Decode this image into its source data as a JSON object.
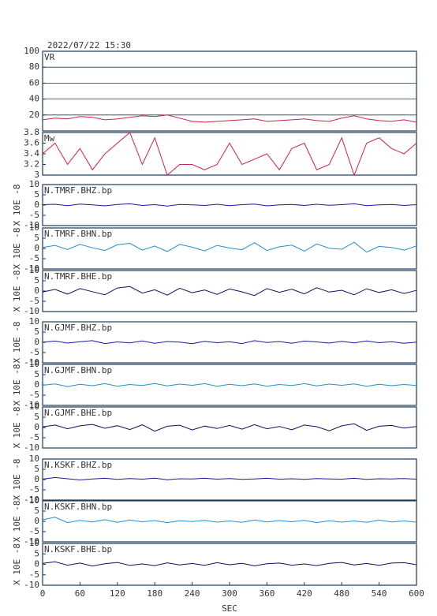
{
  "chart_data": [
    {
      "type": "line",
      "title": "2022/07/22 15:30",
      "label": "VR",
      "xlim": [
        0,
        600
      ],
      "ylim": [
        0,
        100
      ],
      "yticks": [
        20,
        40,
        60,
        80,
        100
      ],
      "grid": true,
      "x": [
        0,
        20,
        40,
        60,
        80,
        100,
        120,
        140,
        160,
        180,
        200,
        220,
        240,
        260,
        280,
        300,
        320,
        340,
        360,
        380,
        400,
        420,
        440,
        460,
        480,
        500,
        520,
        540,
        560,
        580,
        600
      ],
      "series": [
        {
          "name": "VR",
          "color": "#d0204a",
          "values": [
            14,
            16,
            15,
            18,
            17,
            14,
            15,
            17,
            19,
            18,
            20,
            16,
            12,
            11,
            12,
            13,
            14,
            15,
            12,
            13,
            14,
            15,
            13,
            12,
            16,
            19,
            15,
            13,
            12,
            14,
            11
          ]
        }
      ]
    },
    {
      "type": "line",
      "label": "Mw",
      "xlim": [
        0,
        600
      ],
      "ylim": [
        3.0,
        3.8
      ],
      "yticks": [
        3.0,
        3.2,
        3.4,
        3.6,
        3.8
      ],
      "x": [
        0,
        20,
        40,
        60,
        80,
        100,
        120,
        140,
        160,
        180,
        200,
        220,
        240,
        260,
        280,
        300,
        320,
        340,
        360,
        380,
        400,
        420,
        440,
        460,
        480,
        500,
        520,
        540,
        560,
        580,
        600
      ],
      "series": [
        {
          "name": "Mw",
          "color": "#d0204a",
          "values": [
            3.4,
            3.6,
            3.2,
            3.5,
            3.1,
            3.4,
            3.6,
            3.8,
            3.2,
            3.7,
            3.0,
            3.2,
            3.2,
            3.1,
            3.2,
            3.6,
            3.2,
            3.3,
            3.4,
            3.1,
            3.5,
            3.6,
            3.1,
            3.2,
            3.7,
            3.0,
            3.6,
            3.7,
            3.5,
            3.4,
            3.6
          ]
        }
      ]
    },
    {
      "type": "line",
      "label": "N.TMRF.BHZ.bp",
      "ylabel": "X 10E -8",
      "xlim": [
        0,
        600
      ],
      "ylim": [
        -10,
        10
      ],
      "yticks": [
        -10,
        -5,
        0,
        5,
        10
      ],
      "x": [
        0,
        20,
        40,
        60,
        80,
        100,
        120,
        140,
        160,
        180,
        200,
        220,
        240,
        260,
        280,
        300,
        320,
        340,
        360,
        380,
        400,
        420,
        440,
        460,
        480,
        500,
        520,
        540,
        560,
        580,
        600
      ],
      "series": [
        {
          "name": "N.TMRF.BHZ.bp",
          "color": "#1a1a9e",
          "values": [
            0.2,
            0.4,
            -0.3,
            0.5,
            0.1,
            -0.4,
            0.3,
            0.6,
            -0.2,
            0.2,
            -0.5,
            0.3,
            0.1,
            -0.2,
            0.4,
            -0.3,
            0.2,
            0.5,
            -0.4,
            0.1,
            0.3,
            -0.2,
            0.4,
            -0.1,
            0.2,
            0.6,
            -0.3,
            0.1,
            0.3,
            -0.2,
            0.2
          ]
        }
      ]
    },
    {
      "type": "line",
      "label": "N.TMRF.BHN.bp",
      "ylabel": "X 10E -8",
      "xlim": [
        0,
        600
      ],
      "ylim": [
        -10,
        10
      ],
      "yticks": [
        -10,
        -5,
        0,
        5,
        10
      ],
      "x": [
        0,
        20,
        40,
        60,
        80,
        100,
        120,
        140,
        160,
        180,
        200,
        220,
        240,
        260,
        280,
        300,
        320,
        340,
        360,
        380,
        400,
        420,
        440,
        460,
        480,
        500,
        520,
        540,
        560,
        580,
        600
      ],
      "series": [
        {
          "name": "N.TMRF.BHN.bp",
          "color": "#2090d0",
          "values": [
            0.5,
            1.5,
            -0.5,
            2.0,
            0.3,
            -1.0,
            1.8,
            2.5,
            -0.8,
            1.2,
            -1.5,
            2.0,
            0.6,
            -1.2,
            1.5,
            0.2,
            -0.6,
            2.8,
            -1.0,
            0.8,
            1.6,
            -1.3,
            2.2,
            0.1,
            -0.4,
            3.0,
            -1.8,
            1.0,
            0.5,
            -0.8,
            1.2
          ]
        }
      ]
    },
    {
      "type": "line",
      "label": "N.TMRF.BHE.bp",
      "ylabel": "X 10E -8",
      "xlim": [
        0,
        600
      ],
      "ylim": [
        -10,
        10
      ],
      "yticks": [
        -10,
        -5,
        0,
        5,
        10
      ],
      "x": [
        0,
        20,
        40,
        60,
        80,
        100,
        120,
        140,
        160,
        180,
        200,
        220,
        240,
        260,
        280,
        300,
        320,
        340,
        360,
        380,
        400,
        420,
        440,
        460,
        480,
        500,
        520,
        540,
        560,
        580,
        600
      ],
      "series": [
        {
          "name": "N.TMRF.BHE.bp",
          "color": "#101060",
          "values": [
            -0.5,
            0.8,
            -1.5,
            1.2,
            -0.3,
            -1.8,
            1.5,
            2.2,
            -1.0,
            0.6,
            -2.0,
            1.4,
            -0.8,
            0.5,
            -1.6,
            1.0,
            -0.4,
            -2.2,
            1.2,
            -0.6,
            0.9,
            -1.4,
            1.6,
            -0.5,
            0.4,
            -1.8,
            1.1,
            -0.7,
            0.6,
            -1.2,
            0.3
          ]
        }
      ]
    },
    {
      "type": "line",
      "label": "N.GJMF.BHZ.bp",
      "ylabel": "X 10E -8",
      "xlim": [
        0,
        600
      ],
      "ylim": [
        -10,
        10
      ],
      "yticks": [
        -10,
        -5,
        0,
        5,
        10
      ],
      "x": [
        0,
        20,
        40,
        60,
        80,
        100,
        120,
        140,
        160,
        180,
        200,
        220,
        240,
        260,
        280,
        300,
        320,
        340,
        360,
        380,
        400,
        420,
        440,
        460,
        480,
        500,
        520,
        540,
        560,
        580,
        600
      ],
      "series": [
        {
          "name": "N.GJMF.BHZ.bp",
          "color": "#1a1a9e",
          "values": [
            0.1,
            0.6,
            -0.4,
            0.3,
            0.8,
            -0.6,
            0.2,
            -0.3,
            0.7,
            -0.5,
            0.4,
            0.1,
            -0.7,
            0.5,
            -0.2,
            0.3,
            -0.6,
            0.8,
            -0.1,
            0.4,
            -0.5,
            0.6,
            0.2,
            -0.4,
            0.5,
            -0.3,
            0.7,
            -0.2,
            0.3,
            -0.5,
            0.1
          ]
        }
      ]
    },
    {
      "type": "line",
      "label": "N.GJMF.BHN.bp",
      "ylabel": "X 10E -8",
      "xlim": [
        0,
        600
      ],
      "ylim": [
        -10,
        10
      ],
      "yticks": [
        -10,
        -5,
        0,
        5,
        10
      ],
      "x": [
        0,
        20,
        40,
        60,
        80,
        100,
        120,
        140,
        160,
        180,
        200,
        220,
        240,
        260,
        280,
        300,
        320,
        340,
        360,
        380,
        400,
        420,
        440,
        460,
        480,
        500,
        520,
        540,
        560,
        580,
        600
      ],
      "series": [
        {
          "name": "N.GJMF.BHN.bp",
          "color": "#2090d0",
          "values": [
            -0.2,
            0.5,
            -0.8,
            0.3,
            -0.4,
            0.6,
            -0.6,
            0.2,
            -0.3,
            0.7,
            -0.5,
            0.4,
            -0.2,
            0.6,
            -0.7,
            0.3,
            -0.4,
            0.5,
            -0.6,
            0.2,
            -0.3,
            0.6,
            -0.5,
            0.4,
            -0.2,
            0.5,
            -0.7,
            0.3,
            -0.4,
            0.2,
            -0.3
          ]
        }
      ]
    },
    {
      "type": "line",
      "label": "N.GJMF.BHE.bp",
      "ylabel": "X 10E -8",
      "xlim": [
        0,
        600
      ],
      "ylim": [
        -10,
        10
      ],
      "yticks": [
        -10,
        -5,
        0,
        5,
        10
      ],
      "x": [
        0,
        20,
        40,
        60,
        80,
        100,
        120,
        140,
        160,
        180,
        200,
        220,
        240,
        260,
        280,
        300,
        320,
        340,
        360,
        380,
        400,
        420,
        440,
        460,
        480,
        500,
        520,
        540,
        560,
        580,
        600
      ],
      "series": [
        {
          "name": "N.GJMF.BHE.bp",
          "color": "#101060",
          "values": [
            0.3,
            1.2,
            -0.6,
            0.8,
            1.5,
            -0.4,
            0.9,
            -1.0,
            1.3,
            -1.8,
            0.6,
            1.1,
            -1.2,
            0.7,
            -0.5,
            1.0,
            -0.8,
            1.4,
            -0.6,
            0.5,
            -1.1,
            1.2,
            0.4,
            -1.6,
            0.8,
            1.8,
            -1.4,
            0.6,
            1.0,
            -0.3,
            0.5
          ]
        }
      ]
    },
    {
      "type": "line",
      "label": "N.KSKF.BHZ.bp",
      "ylabel": "X 10E -8",
      "xlim": [
        0,
        600
      ],
      "ylim": [
        -10,
        10
      ],
      "yticks": [
        -10,
        -5,
        0,
        5,
        10
      ],
      "x": [
        0,
        20,
        40,
        60,
        80,
        100,
        120,
        140,
        160,
        180,
        200,
        220,
        240,
        260,
        280,
        300,
        320,
        340,
        360,
        380,
        400,
        420,
        440,
        460,
        480,
        500,
        520,
        540,
        560,
        580,
        600
      ],
      "series": [
        {
          "name": "N.KSKF.BHZ.bp",
          "color": "#1a1a9e",
          "values": [
            0.2,
            1.0,
            0.4,
            -0.2,
            0.3,
            0.6,
            0.1,
            0.5,
            0.2,
            0.7,
            -0.1,
            0.4,
            0.3,
            0.6,
            0.2,
            0.5,
            0.1,
            0.3,
            0.6,
            0.2,
            0.4,
            0.1,
            0.5,
            0.3,
            0.2,
            0.6,
            0.1,
            0.4,
            0.3,
            0.5,
            0.2
          ]
        }
      ]
    },
    {
      "type": "line",
      "label": "N.KSKF.BHN.bp",
      "ylabel": "X 10E -8",
      "xlim": [
        0,
        600
      ],
      "ylim": [
        -10,
        10
      ],
      "yticks": [
        -10,
        -5,
        0,
        5,
        10
      ],
      "x": [
        0,
        20,
        40,
        60,
        80,
        100,
        120,
        140,
        160,
        180,
        200,
        220,
        240,
        260,
        280,
        300,
        320,
        340,
        360,
        380,
        400,
        420,
        440,
        460,
        480,
        500,
        520,
        540,
        560,
        580,
        600
      ],
      "series": [
        {
          "name": "N.KSKF.BHN.bp",
          "color": "#2090d0",
          "values": [
            0.8,
            2.0,
            -0.6,
            0.5,
            -0.3,
            0.8,
            -0.5,
            0.6,
            -0.2,
            0.4,
            -0.6,
            0.3,
            -0.1,
            0.5,
            -0.4,
            0.2,
            -0.5,
            0.6,
            -0.3,
            0.4,
            -0.2,
            0.5,
            -0.6,
            0.3,
            -0.4,
            0.2,
            -0.5,
            0.6,
            -0.3,
            0.2,
            -0.4
          ]
        }
      ]
    },
    {
      "type": "line",
      "label": "N.KSKF.BHE.bp",
      "ylabel": "X 10E -8",
      "xlabel": "SEC",
      "xlim": [
        0,
        600
      ],
      "ylim": [
        -10,
        10
      ],
      "yticks": [
        -10,
        -5,
        0,
        5,
        10
      ],
      "xticks": [
        0,
        60,
        120,
        180,
        240,
        300,
        360,
        420,
        480,
        540,
        600
      ],
      "x": [
        0,
        20,
        40,
        60,
        80,
        100,
        120,
        140,
        160,
        180,
        200,
        220,
        240,
        260,
        280,
        300,
        320,
        340,
        360,
        380,
        400,
        420,
        440,
        460,
        480,
        500,
        520,
        540,
        560,
        580,
        600
      ],
      "series": [
        {
          "name": "N.KSKF.BHE.bp",
          "color": "#101060",
          "values": [
            0.5,
            1.2,
            -0.4,
            0.6,
            -0.8,
            0.3,
            0.9,
            -0.5,
            0.2,
            -0.6,
            0.7,
            -0.3,
            0.4,
            -0.5,
            0.8,
            -0.2,
            0.5,
            -0.7,
            0.3,
            0.6,
            -0.4,
            0.2,
            -0.6,
            0.5,
            0.9,
            -0.3,
            0.4,
            -0.5,
            0.6,
            0.8,
            -0.2
          ]
        }
      ]
    }
  ]
}
